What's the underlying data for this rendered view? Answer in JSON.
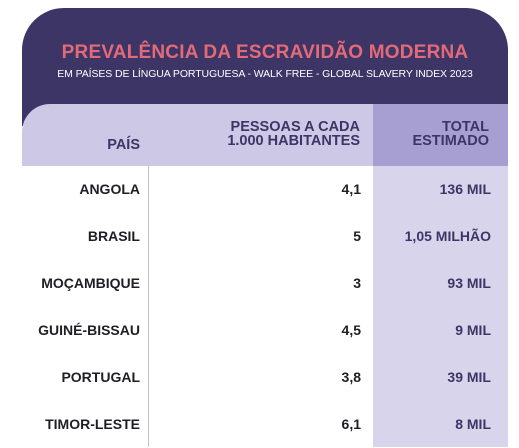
{
  "chart_data": {
    "type": "table",
    "title": "PREVALÊNCIA DA ESCRAVIDÃO MODERNA",
    "subtitle": "EM PAÍSES DE LÍNGUA PORTUGUESA - WALK FREE - GLOBAL SLAVERY INDEX 2023",
    "columns": [
      "PAÍS",
      "PESSOAS A CADA\n1.000 HABITANTES",
      "TOTAL\nESTIMADO"
    ],
    "rows": [
      {
        "pais": "ANGOLA",
        "pessoas": "4,1",
        "total": "136 MIL"
      },
      {
        "pais": "BRASIL",
        "pessoas": "5",
        "total": "1,05 MILHÃO"
      },
      {
        "pais": "MOÇAMBIQUE",
        "pessoas": "3",
        "total": "93 MIL"
      },
      {
        "pais": "GUINÉ-BISSAU",
        "pessoas": "4,5",
        "total": "9 MIL"
      },
      {
        "pais": "PORTUGAL",
        "pessoas": "3,8",
        "total": "39 MIL"
      },
      {
        "pais": "TIMOR-LESTE",
        "pessoas": "6,1",
        "total": "8 MIL"
      }
    ]
  },
  "colors": {
    "banner": "#3d3566",
    "title": "#e36a78",
    "header": "#ccc8e6",
    "total_header": "#a79fd1",
    "total_column": "#d8d4ec"
  }
}
